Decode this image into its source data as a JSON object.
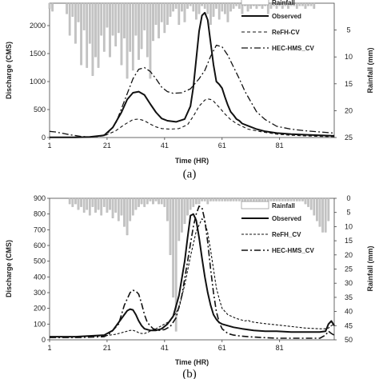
{
  "chart_data": [
    {
      "type": "line",
      "panel_label": "(a)",
      "xlabel": "Time (HR)",
      "ylabel": "Discharge (CMS)",
      "y2label": "Rainfall (mm)",
      "xlim": [
        1,
        100
      ],
      "ylim": [
        0,
        2400
      ],
      "y2lim": [
        0,
        25
      ],
      "y2_reversed": true,
      "x_ticks": [
        "1",
        "21",
        "41",
        "61",
        "81"
      ],
      "x_tick_values": [
        1,
        21,
        41,
        61,
        81
      ],
      "y_ticks": [
        0,
        500,
        1000,
        1500,
        2000
      ],
      "y2_ticks": [
        5,
        10,
        15,
        20,
        25
      ],
      "legend_position": "top-right",
      "rainfall": {
        "name": "Rainfall",
        "x": [
          1,
          2,
          7,
          8,
          9,
          10,
          11,
          12,
          13,
          14,
          15,
          16,
          17,
          18,
          19,
          20,
          21,
          22,
          23,
          24,
          25,
          26,
          27,
          28,
          29,
          30,
          31,
          32,
          33,
          34,
          35,
          36,
          37,
          38,
          39,
          40,
          41,
          42,
          43,
          44,
          45,
          46,
          47,
          48,
          49,
          50,
          51,
          52,
          53,
          54,
          55,
          56,
          57,
          58,
          59,
          60,
          61,
          62,
          63,
          64,
          65,
          66,
          67,
          68,
          69,
          70,
          71,
          72,
          73,
          74,
          75,
          76,
          77,
          78,
          79,
          80,
          81,
          82,
          83,
          84,
          85,
          86,
          87,
          88,
          89,
          90,
          91,
          92,
          93
        ],
        "values": [
          1,
          1.5,
          2,
          6,
          2.5,
          7.5,
          3.5,
          11.5,
          5,
          12,
          7.5,
          13.5,
          10,
          12,
          6,
          9,
          4.5,
          10,
          6,
          8,
          5.5,
          11.5,
          6.5,
          14,
          9,
          12.5,
          6,
          10.5,
          8.5,
          5,
          10,
          14,
          7,
          4,
          6.5,
          3.5,
          5.5,
          4,
          2.5,
          1.5,
          1,
          4,
          1.5,
          3.5,
          1,
          0.5,
          1.5,
          3,
          2,
          0.5,
          1,
          2,
          4,
          2.5,
          1,
          3,
          1.5,
          2,
          3.5,
          1.5,
          1,
          0.5,
          1,
          2,
          0.5,
          1.5,
          1,
          0.5,
          1,
          0.5,
          1,
          0.5,
          2,
          1,
          0.5,
          1,
          0.5,
          1,
          0.5,
          1,
          0.5,
          0.5,
          1,
          0.5,
          0.5,
          1,
          0.5,
          0.5,
          1
        ]
      },
      "series": [
        {
          "name": "Observed",
          "x": [
            1,
            10,
            15,
            20,
            23,
            26,
            28,
            30,
            32,
            34,
            36,
            38,
            40,
            42,
            45,
            48,
            50,
            51,
            52,
            53,
            54,
            55,
            56,
            57,
            58,
            59,
            60,
            61,
            62,
            63,
            64,
            65,
            66,
            67,
            68,
            70,
            73,
            76,
            80,
            85,
            90,
            95,
            100
          ],
          "values": [
            5,
            5,
            10,
            40,
            180,
            450,
            680,
            800,
            820,
            760,
            600,
            450,
            340,
            300,
            280,
            330,
            560,
            900,
            1400,
            1900,
            2180,
            2230,
            2100,
            1700,
            1300,
            1000,
            950,
            880,
            720,
            580,
            460,
            400,
            330,
            300,
            250,
            210,
            150,
            110,
            80,
            60,
            50,
            40,
            30
          ]
        },
        {
          "name": "ReFH-CV",
          "x": [
            1,
            10,
            15,
            20,
            24,
            27,
            30,
            32,
            34,
            36,
            38,
            40,
            43,
            46,
            49,
            51,
            53,
            55,
            56,
            57,
            58,
            60,
            62,
            64,
            66,
            68,
            70,
            75,
            80,
            85,
            90,
            95,
            100
          ],
          "values": [
            5,
            5,
            10,
            30,
            120,
            230,
            320,
            330,
            300,
            240,
            190,
            160,
            150,
            160,
            230,
            380,
            560,
            670,
            690,
            680,
            650,
            540,
            420,
            320,
            250,
            200,
            150,
            100,
            60,
            40,
            30,
            20,
            15
          ]
        },
        {
          "name": "HEC-HMS_CV",
          "x": [
            1,
            3,
            5,
            8,
            12,
            15,
            18,
            21,
            24,
            27,
            30,
            32,
            34,
            36,
            38,
            40,
            42,
            44,
            47,
            50,
            53,
            55,
            57,
            59,
            61,
            63,
            65,
            67,
            69,
            71,
            73,
            76,
            80,
            85,
            90,
            95,
            100
          ],
          "values": [
            110,
            100,
            80,
            50,
            20,
            10,
            20,
            60,
            250,
            650,
            1050,
            1220,
            1250,
            1180,
            1050,
            900,
            820,
            790,
            800,
            870,
            1050,
            1200,
            1450,
            1650,
            1620,
            1470,
            1260,
            1050,
            820,
            640,
            460,
            320,
            200,
            150,
            120,
            100,
            80
          ]
        }
      ]
    },
    {
      "type": "line",
      "panel_label": "(b)",
      "xlabel": "Time (HR)",
      "ylabel": "Discharge (CMS)",
      "y2label": "Rainfall (mm)",
      "xlim": [
        1,
        100
      ],
      "ylim": [
        0,
        900
      ],
      "y2lim": [
        0,
        50
      ],
      "y2_reversed": true,
      "x_ticks": [
        "1",
        "21",
        "41",
        "61",
        "81"
      ],
      "x_tick_values": [
        1,
        21,
        41,
        61,
        81
      ],
      "y_ticks": [
        0,
        100,
        200,
        300,
        400,
        500,
        600,
        700,
        800,
        900
      ],
      "y2_ticks": [
        0,
        5,
        10,
        15,
        20,
        25,
        30,
        35,
        40,
        45,
        50
      ],
      "legend_position": "top-right",
      "rainfall": {
        "name": "Rainfall",
        "x": [
          8,
          9,
          10,
          11,
          12,
          13,
          14,
          15,
          16,
          17,
          18,
          19,
          20,
          21,
          22,
          23,
          24,
          25,
          26,
          27,
          28,
          29,
          30,
          31,
          32,
          33,
          34,
          35,
          36,
          37,
          38,
          39,
          40,
          41,
          42,
          43,
          44,
          45,
          46,
          47,
          48,
          49,
          50,
          51,
          52,
          53,
          54,
          55,
          56,
          57,
          58,
          59,
          60,
          61,
          62,
          63,
          64,
          65,
          66,
          67,
          68,
          69,
          70,
          71,
          72,
          73,
          74,
          75,
          76,
          77,
          78,
          79,
          80,
          81,
          82,
          83,
          84,
          85,
          86,
          87,
          88,
          89,
          90,
          91,
          92,
          93,
          94,
          95,
          96,
          97,
          98
        ],
        "values": [
          2,
          3,
          2,
          4,
          3,
          5,
          4,
          6,
          3,
          5,
          4,
          6,
          3,
          5,
          4,
          7,
          5,
          8,
          6,
          10,
          13,
          8,
          6,
          4,
          3,
          2,
          3,
          2,
          1,
          2,
          1,
          2,
          2,
          3,
          8,
          20,
          35,
          47,
          15,
          12,
          9,
          6,
          4,
          3,
          2,
          2,
          1,
          1,
          2,
          1,
          1,
          1,
          1,
          1,
          1,
          1,
          1,
          1,
          1,
          1,
          1,
          1,
          1,
          1,
          1,
          1,
          1,
          1,
          1,
          1,
          1,
          1,
          1,
          1,
          1,
          1,
          1,
          1,
          1,
          1,
          1,
          1,
          2,
          3,
          4,
          6,
          8,
          10,
          12,
          12,
          8
        ]
      },
      "series": [
        {
          "name": "Observed",
          "x": [
            1,
            10,
            20,
            23,
            25,
            27,
            28,
            29,
            30,
            31,
            32,
            33,
            34,
            36,
            38,
            40,
            42,
            44,
            46,
            48,
            49,
            50,
            51,
            52,
            53,
            54,
            55,
            56,
            57,
            58,
            59,
            60,
            61,
            63,
            65,
            68,
            72,
            76,
            80,
            85,
            90,
            95,
            97,
            98,
            99,
            100
          ],
          "values": [
            20,
            20,
            30,
            60,
            110,
            160,
            185,
            195,
            190,
            160,
            120,
            90,
            70,
            60,
            60,
            70,
            100,
            150,
            280,
            500,
            650,
            790,
            800,
            760,
            650,
            520,
            400,
            300,
            220,
            160,
            130,
            110,
            100,
            90,
            80,
            70,
            60,
            55,
            55,
            50,
            50,
            50,
            55,
            100,
            120,
            90
          ]
        },
        {
          "name": "ReFH_CV",
          "x": [
            1,
            10,
            20,
            24,
            27,
            29,
            30,
            31,
            32,
            33,
            34,
            36,
            38,
            40,
            43,
            46,
            48,
            50,
            52,
            54,
            55,
            56,
            57,
            58,
            59,
            60,
            61,
            63,
            66,
            69,
            70,
            71,
            75,
            80,
            85,
            90,
            95,
            97,
            98,
            99,
            100
          ],
          "values": [
            20,
            20,
            25,
            35,
            50,
            60,
            60,
            55,
            45,
            40,
            40,
            55,
            70,
            90,
            120,
            200,
            350,
            530,
            690,
            770,
            750,
            680,
            570,
            450,
            330,
            260,
            200,
            160,
            135,
            120,
            125,
            115,
            105,
            95,
            85,
            75,
            70,
            70,
            75,
            90,
            100
          ]
        },
        {
          "name": "HEC-HMS_CV",
          "x": [
            1,
            10,
            20,
            22,
            25,
            27,
            29,
            30,
            31,
            32,
            33,
            34,
            35,
            37,
            39,
            41,
            43,
            45,
            47,
            49,
            51,
            52,
            53,
            54,
            55,
            56,
            57,
            58,
            59,
            60,
            61,
            63,
            65,
            67,
            70,
            75,
            80,
            85,
            90,
            95,
            97,
            98,
            99,
            100
          ],
          "values": [
            15,
            15,
            20,
            40,
            100,
            220,
            300,
            315,
            310,
            290,
            230,
            160,
            110,
            70,
            60,
            65,
            85,
            140,
            280,
            500,
            720,
            800,
            850,
            840,
            760,
            620,
            450,
            300,
            180,
            110,
            70,
            40,
            30,
            25,
            20,
            15,
            10,
            10,
            10,
            10,
            30,
            55,
            40,
            30
          ]
        }
      ]
    }
  ]
}
